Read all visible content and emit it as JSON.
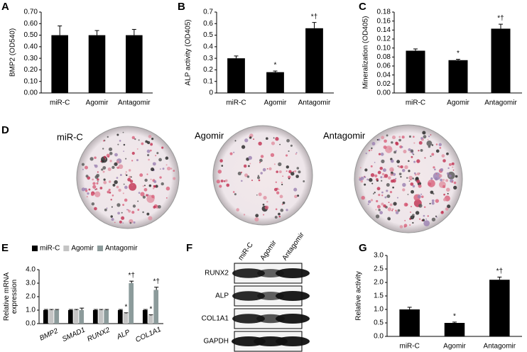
{
  "chart_data": [
    {
      "type": "bar",
      "panel": "A",
      "ylabel": [
        "BMP2 (OD540)"
      ],
      "categories": [
        "miR-C",
        "Agomir",
        "Antagomir"
      ],
      "values": [
        0.5,
        0.5,
        0.5
      ],
      "errors": [
        0.08,
        0.04,
        0.05
      ],
      "color": "#000000",
      "ylim": [
        0,
        0.7
      ],
      "yticks": [
        {
          "value": 0,
          "label": "0.00"
        },
        {
          "value": 0.1,
          "label": "0.10"
        },
        {
          "value": 0.2,
          "label": "0.20"
        },
        {
          "value": 0.3,
          "label": "0.30"
        },
        {
          "value": 0.4,
          "label": "0.40"
        },
        {
          "value": 0.5,
          "label": "0.50"
        },
        {
          "value": 0.6,
          "label": "0.60"
        },
        {
          "value": 0.7,
          "label": "0.70"
        }
      ]
    },
    {
      "type": "bar",
      "panel": "B",
      "ylabel": [
        "ALP activity (OD405)"
      ],
      "categories": [
        "miR-C",
        "Agomir",
        "Antagomir"
      ],
      "values": [
        0.3,
        0.18,
        0.56
      ],
      "errors": [
        0.02,
        0.01,
        0.05
      ],
      "annotations": [
        null,
        "*",
        "*†"
      ],
      "color": "#000000",
      "ylim": [
        0,
        0.7
      ],
      "yticks": [
        0,
        0.1,
        0.2,
        0.3,
        0.4,
        0.5,
        0.6,
        0.7
      ]
    },
    {
      "type": "bar",
      "panel": "C",
      "ylabel": [
        "Mineralization (OD405)"
      ],
      "categories": [
        "miR-C",
        "Agomir",
        "Antagomir"
      ],
      "values": [
        0.094,
        0.073,
        0.143
      ],
      "errors": [
        0.004,
        0.002,
        0.01
      ],
      "annotations": [
        null,
        "*",
        "*†"
      ],
      "color": "#000000",
      "ylim": [
        0,
        0.18
      ],
      "yticks": [
        {
          "value": 0,
          "label": "0.00"
        },
        {
          "value": 0.02,
          "label": "0.02"
        },
        {
          "value": 0.04,
          "label": "0.04"
        },
        {
          "value": 0.06,
          "label": "0.06"
        },
        {
          "value": 0.08,
          "label": "0.08"
        },
        {
          "value": 0.1,
          "label": "0.10"
        },
        {
          "value": 0.12,
          "label": "0.12"
        },
        {
          "value": 0.14,
          "label": "0.14"
        },
        {
          "value": 0.16,
          "label": "0.16"
        },
        {
          "value": 0.18,
          "label": "0.18"
        }
      ]
    },
    {
      "type": "bar",
      "panel": "E",
      "ylabel": [
        "Relative mRNA",
        "expression"
      ],
      "categories": [
        "BMP2",
        "SMAD1",
        "RUNX2",
        "ALP",
        "COL1A1"
      ],
      "italic_categories": true,
      "series": [
        {
          "name": "miR-C",
          "color": "#000000",
          "values": [
            1.0,
            1.0,
            1.0,
            1.0,
            1.0
          ],
          "errors": [
            0.05,
            0.05,
            0.05,
            0.05,
            0.05
          ],
          "annotations": [
            null,
            null,
            null,
            null,
            null
          ]
        },
        {
          "name": "Agomir",
          "color": "#c4c4c4",
          "values": [
            1.0,
            1.0,
            1.0,
            0.75,
            0.6
          ],
          "errors": [
            0.05,
            0.05,
            0.05,
            0.05,
            0.05
          ],
          "annotations": [
            null,
            null,
            null,
            "*",
            "*"
          ]
        },
        {
          "name": "Antagomir",
          "color": "#8c9b9b",
          "values": [
            1.0,
            1.0,
            1.0,
            3.0,
            2.5
          ],
          "errors": [
            0.05,
            0.15,
            0.05,
            0.15,
            0.2
          ],
          "annotations": [
            null,
            null,
            null,
            "*†",
            "*†"
          ]
        }
      ],
      "ylim": [
        0,
        4.0
      ],
      "yticks": [
        {
          "value": 0,
          "label": "0.0"
        },
        {
          "value": 1,
          "label": "1.0"
        },
        {
          "value": 2,
          "label": "2.0"
        },
        {
          "value": 3,
          "label": "3.0"
        },
        {
          "value": 4,
          "label": "4.0"
        }
      ]
    },
    {
      "type": "bar",
      "panel": "G",
      "ylabel": [
        "Relative activity"
      ],
      "categories": [
        "miR-C",
        "Agomir",
        "Antagomir"
      ],
      "values": [
        1.0,
        0.5,
        2.1
      ],
      "errors": [
        0.08,
        0.03,
        0.1
      ],
      "annotations": [
        null,
        "*",
        "*†"
      ],
      "color": "#000000",
      "ylim": [
        0,
        3.0
      ],
      "yticks": [
        {
          "value": 0,
          "label": "0.0"
        },
        {
          "value": 0.5,
          "label": "0.5"
        },
        {
          "value": 1,
          "label": "1.0"
        },
        {
          "value": 1.5,
          "label": "1.5"
        },
        {
          "value": 2,
          "label": "2.0"
        },
        {
          "value": 2.5,
          "label": "2.5"
        },
        {
          "value": 3,
          "label": "3.0"
        }
      ]
    }
  ],
  "panel_d": {
    "panel": "D",
    "labels": [
      "miR-C",
      "Agomir",
      "Antagomir"
    ]
  },
  "panel_f": {
    "panel": "F",
    "lanes": [
      "miR-C",
      "Agomir",
      "Antagomir"
    ],
    "rows": [
      "RUNX2",
      "ALP",
      "COL1A1",
      "GAPDH"
    ]
  }
}
